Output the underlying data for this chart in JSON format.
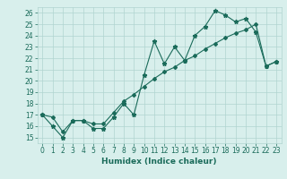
{
  "x": [
    0,
    1,
    2,
    3,
    4,
    5,
    6,
    7,
    8,
    9,
    10,
    11,
    12,
    13,
    14,
    15,
    16,
    17,
    18,
    19,
    20,
    21,
    22,
    23
  ],
  "line1": [
    17,
    16,
    15,
    16.5,
    16.5,
    15.8,
    15.8,
    16.8,
    18,
    17,
    20.5,
    23.5,
    21.5,
    23,
    21.8,
    24,
    24.8,
    26.2,
    25.8,
    25.2,
    25.5,
    24.3,
    21.3,
    21.7
  ],
  "line2": [
    17,
    16.8,
    15.5,
    16.5,
    16.5,
    16.2,
    16.2,
    17.2,
    18.2,
    18.8,
    19.5,
    20.2,
    20.8,
    21.2,
    21.8,
    22.2,
    22.8,
    23.3,
    23.8,
    24.2,
    24.5,
    25.0,
    21.3,
    21.7
  ],
  "line_color": "#1a6b5a",
  "bg_color": "#d8efec",
  "grid_color": "#b0d4d0",
  "xlabel": "Humidex (Indice chaleur)",
  "ylim": [
    14.5,
    26.5
  ],
  "xlim": [
    -0.5,
    23.5
  ],
  "yticks": [
    15,
    16,
    17,
    18,
    19,
    20,
    21,
    22,
    23,
    24,
    25,
    26
  ],
  "xticks": [
    0,
    1,
    2,
    3,
    4,
    5,
    6,
    7,
    8,
    9,
    10,
    11,
    12,
    13,
    14,
    15,
    16,
    17,
    18,
    19,
    20,
    21,
    22,
    23
  ],
  "tick_fontsize": 5.5,
  "xlabel_fontsize": 6.5
}
